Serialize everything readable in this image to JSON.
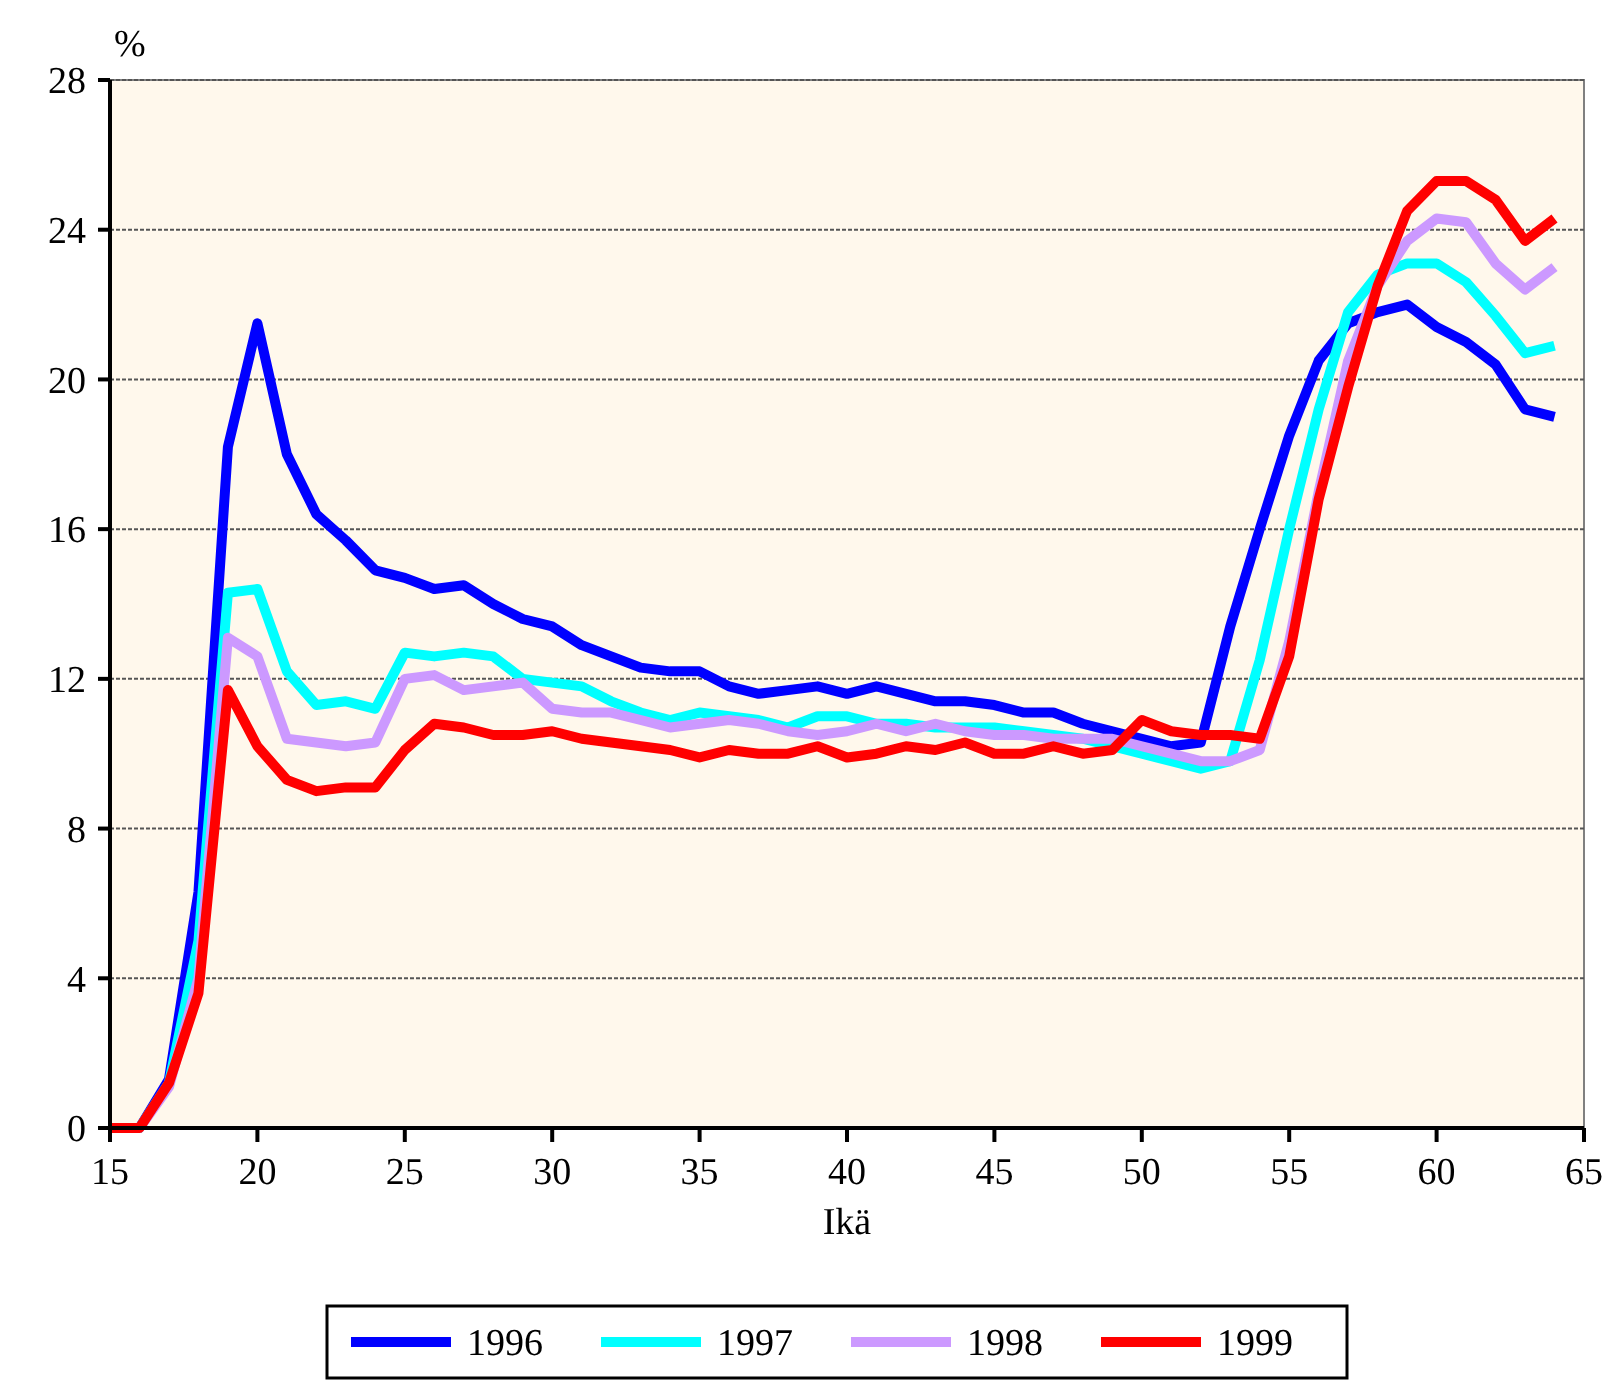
{
  "chart_data": {
    "type": "line",
    "ylabel": "%",
    "xlabel": "Ikä",
    "x": [
      15,
      16,
      17,
      18,
      19,
      20,
      21,
      22,
      23,
      24,
      25,
      26,
      27,
      28,
      29,
      30,
      31,
      32,
      33,
      34,
      35,
      36,
      37,
      38,
      39,
      40,
      41,
      42,
      43,
      44,
      45,
      46,
      47,
      48,
      49,
      50,
      51,
      52,
      53,
      54,
      55,
      56,
      57,
      58,
      59,
      60,
      61,
      62,
      63,
      64
    ],
    "series": [
      {
        "name": "1996",
        "color": "#0000ff",
        "values": [
          0,
          0,
          1.3,
          6.3,
          18.2,
          21.5,
          18.0,
          16.4,
          15.7,
          14.9,
          14.7,
          14.4,
          14.5,
          14.0,
          13.6,
          13.4,
          12.9,
          12.6,
          12.3,
          12.2,
          12.2,
          11.8,
          11.6,
          11.7,
          11.8,
          11.6,
          11.8,
          11.6,
          11.4,
          11.4,
          11.3,
          11.1,
          11.1,
          10.8,
          10.6,
          10.4,
          10.2,
          10.3,
          13.4,
          16.0,
          18.5,
          20.5,
          21.5,
          21.8,
          22.0,
          21.4,
          21.0,
          20.4,
          19.2,
          19.0
        ]
      },
      {
        "name": "1997",
        "color": "#00ffff",
        "values": [
          0,
          0,
          1.2,
          5.0,
          14.3,
          14.4,
          12.2,
          11.3,
          11.4,
          11.2,
          12.7,
          12.6,
          12.7,
          12.6,
          12.0,
          11.9,
          11.8,
          11.4,
          11.1,
          10.9,
          11.1,
          11.0,
          10.9,
          10.7,
          11.0,
          11.0,
          10.8,
          10.8,
          10.7,
          10.7,
          10.7,
          10.6,
          10.5,
          10.4,
          10.2,
          10.0,
          9.8,
          9.6,
          9.8,
          12.5,
          16.0,
          19.2,
          21.8,
          22.8,
          23.1,
          23.1,
          22.6,
          21.7,
          20.7,
          20.9
        ]
      },
      {
        "name": "1998",
        "color": "#cc99ff",
        "values": [
          0,
          0,
          1.1,
          4.0,
          13.1,
          12.6,
          10.4,
          10.3,
          10.2,
          10.3,
          12.0,
          12.1,
          11.7,
          11.8,
          11.9,
          11.2,
          11.1,
          11.1,
          10.9,
          10.7,
          10.8,
          10.9,
          10.8,
          10.6,
          10.5,
          10.6,
          10.8,
          10.6,
          10.8,
          10.6,
          10.5,
          10.5,
          10.4,
          10.4,
          10.4,
          10.2,
          10.0,
          9.8,
          9.8,
          10.1,
          13.0,
          17.0,
          20.5,
          22.5,
          23.7,
          24.3,
          24.2,
          23.1,
          22.4,
          23.0
        ]
      },
      {
        "name": "1999",
        "color": "#ff0000",
        "values": [
          0,
          0,
          1.2,
          3.6,
          11.7,
          10.2,
          9.3,
          9.0,
          9.1,
          9.1,
          10.1,
          10.8,
          10.7,
          10.5,
          10.5,
          10.6,
          10.4,
          10.3,
          10.2,
          10.1,
          9.9,
          10.1,
          10.0,
          10.0,
          10.2,
          9.9,
          10.0,
          10.2,
          10.1,
          10.3,
          10.0,
          10.0,
          10.2,
          10.0,
          10.1,
          10.9,
          10.6,
          10.5,
          10.5,
          10.4,
          12.6,
          16.8,
          19.8,
          22.5,
          24.5,
          25.3,
          25.3,
          24.8,
          23.7,
          24.3
        ]
      }
    ],
    "xlim": [
      15,
      65
    ],
    "xticks": [
      15,
      20,
      25,
      30,
      35,
      40,
      45,
      50,
      55,
      60,
      65
    ],
    "ylim": [
      0,
      28
    ],
    "yticks": [
      0,
      4,
      8,
      12,
      16,
      20,
      24,
      28
    ],
    "grid": "y",
    "legend": "bottom",
    "marker": "none",
    "line_style": "solid"
  }
}
